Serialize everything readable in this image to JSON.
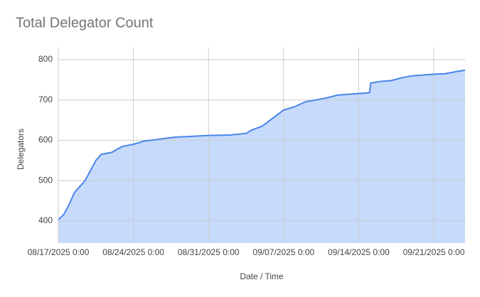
{
  "chart_data": {
    "type": "area",
    "title": "Total Delegator Count",
    "x_label": "Date / Time",
    "y_label": "Delegators",
    "x": [
      "2025-08-17 00:00",
      "2025-08-17 12:00",
      "2025-08-18 00:00",
      "2025-08-18 12:00",
      "2025-08-19 00:00",
      "2025-08-19 12:00",
      "2025-08-20 00:00",
      "2025-08-20 12:00",
      "2025-08-21 00:00",
      "2025-08-22 00:00",
      "2025-08-22 12:00",
      "2025-08-23 00:00",
      "2025-08-24 00:00",
      "2025-08-25 00:00",
      "2025-08-26 00:00",
      "2025-08-27 00:00",
      "2025-08-28 00:00",
      "2025-08-29 00:00",
      "2025-08-31 00:00",
      "2025-09-02 00:00",
      "2025-09-03 12:00",
      "2025-09-04 00:00",
      "2025-09-05 00:00",
      "2025-09-06 00:00",
      "2025-09-07 00:00",
      "2025-09-08 00:00",
      "2025-09-09 00:00",
      "2025-09-10 00:00",
      "2025-09-11 00:00",
      "2025-09-12 00:00",
      "2025-09-14 00:00",
      "2025-09-15 00:00",
      "2025-09-15 03:00",
      "2025-09-16 00:00",
      "2025-09-17 00:00",
      "2025-09-18 00:00",
      "2025-09-19 00:00",
      "2025-09-20 00:00",
      "2025-09-21 00:00",
      "2025-09-22 00:00",
      "2025-09-23 00:00",
      "2025-09-23 22:00"
    ],
    "series": [
      {
        "name": "Delegators",
        "color": "#4a86e8",
        "fill": "#c6dafc",
        "values": [
          403,
          415,
          440,
          470,
          485,
          500,
          525,
          550,
          565,
          570,
          578,
          585,
          590,
          598,
          601,
          605,
          608,
          609,
          612,
          613,
          617,
          625,
          635,
          655,
          675,
          683,
          695,
          700,
          705,
          712,
          716,
          718,
          742,
          746,
          748,
          755,
          760,
          762,
          764,
          765,
          770,
          774
        ]
      }
    ],
    "xlim": [
      "2025-08-17 00:00",
      "2025-09-23 22:00"
    ],
    "xticks": [
      {
        "value": "2025-08-17 00:00",
        "label": "08/17/2025 0:00"
      },
      {
        "value": "2025-08-24 00:00",
        "label": "08/24/2025 0:00"
      },
      {
        "value": "2025-08-31 00:00",
        "label": "08/31/2025 0:00"
      },
      {
        "value": "2025-09-07 00:00",
        "label": "09/07/2025 0:00"
      },
      {
        "value": "2025-09-14 00:00",
        "label": "09/14/2025 0:00"
      },
      {
        "value": "2025-09-21 00:00",
        "label": "09/21/2025 0:00"
      }
    ],
    "ylim": [
      345,
      830
    ],
    "yticks": [
      400,
      500,
      600,
      700,
      800
    ],
    "grid": true
  }
}
